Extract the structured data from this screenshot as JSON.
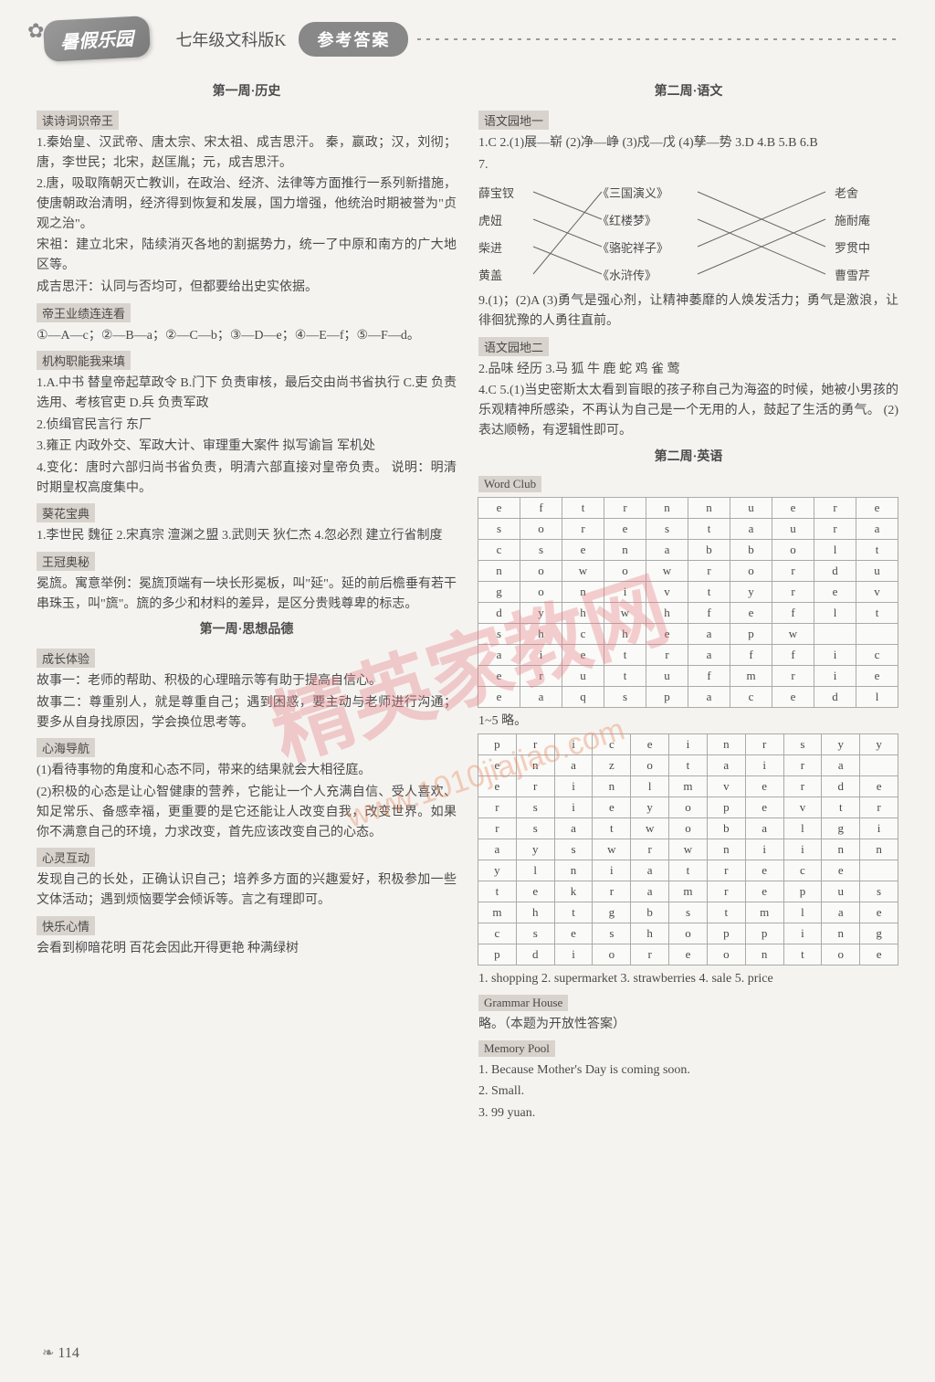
{
  "header": {
    "badge": "暑假乐园",
    "subtitle": "七年级文科版K",
    "answers": "参考答案"
  },
  "left": {
    "title1": "第一周·历史",
    "tag1": "读诗词识帝王",
    "p1a": "1.秦始皇、汉武帝、唐太宗、宋太祖、成吉思汗。  秦，嬴政；汉，刘彻；唐，李世民；北宋，赵匡胤；元，成吉思汗。",
    "p1b": "2.唐，吸取隋朝灭亡教训，在政治、经济、法律等方面推行一系列新措施，使唐朝政治清明，经济得到恢复和发展，国力增强，他统治时期被誉为\"贞观之治\"。",
    "p1c": "宋祖：建立北宋，陆续消灭各地的割据势力，统一了中原和南方的广大地区等。",
    "p1d": "成吉思汗：认同与否均可，但都要给出史实依据。",
    "tag2": "帝王业绩连连看",
    "p2": "①—A—c；②—B—a；②—C—b；③—D—e；④—E—f；⑤—F—d。",
    "tag3": "机构职能我来填",
    "p3a": "1.A.中书  替皇帝起草政令  B.门下  负责审核，最后交由尚书省执行  C.吏  负责选用、考核官吏  D.兵  负责军政",
    "p3b": "2.侦缉官民言行  东厂",
    "p3c": "3.雍正  内政外交、军政大计、审理重大案件  拟写谕旨  军机处",
    "p3d": "4.变化：唐时六部归尚书省负责，明清六部直接对皇帝负责。  说明：明清时期皇权高度集中。",
    "tag4": "葵花宝典",
    "p4a": "1.李世民  魏征  2.宋真宗  澶渊之盟  3.武则天  狄仁杰  4.忽必烈  建立行省制度",
    "tag5": "王冠奥秘",
    "p5a": "冕旒。寓意举例：冕旒顶端有一块长形冕板，叫\"延\"。延的前后檐垂有若干串珠玉，叫\"旒\"。旒的多少和材料的差异，是区分贵贱尊卑的标志。",
    "title2": "第一周·思想品德",
    "tag6": "成长体验",
    "p6a": "故事一：老师的帮助、积极的心理暗示等有助于提高自信心。",
    "p6b": "故事二：尊重别人，就是尊重自己；遇到困惑，要主动与老师进行沟通；要多从自身找原因，学会换位思考等。",
    "tag7": "心海导航",
    "p7a": "(1)看待事物的角度和心态不同，带来的结果就会大相径庭。",
    "p7b": "(2)积极的心态是让心智健康的营养，它能让一个人充满自信、受人喜欢、知足常乐、备感幸福，更重要的是它还能让人改变自我，改变世界。如果你不满意自己的环境，力求改变，首先应该改变自己的心态。",
    "tag8": "心灵互动",
    "p8": "发现自己的长处，正确认识自己；培养多方面的兴趣爱好，积极参加一些文体活动；遇到烦恼要学会倾诉等。言之有理即可。",
    "tag9": "快乐心情",
    "p9": "会看到柳暗花明  百花会因此开得更艳  种满绿树"
  },
  "right": {
    "title1": "第二周·语文",
    "tag1": "语文园地一",
    "p1a": "1.C  2.(1)展—崭  (2)净—峥  (3)戍—戊  (4)孳—势  3.D  4.B  5.B  6.B",
    "p1b": "7.",
    "match": {
      "left": [
        "薛宝钗",
        "虎妞",
        "柴进",
        "黄盖"
      ],
      "mid": [
        "《三国演义》",
        "《红楼梦》",
        "《骆驼祥子》",
        "《水浒传》"
      ],
      "rightc": [
        "老舍",
        "施耐庵",
        "罗贯中",
        "曹雪芹"
      ]
    },
    "p1c": "9.(1)；(2)A  (3)勇气是强心剂，让精神萎靡的人焕发活力；勇气是激浪，让徘徊犹豫的人勇往直前。",
    "tag2": "语文园地二",
    "p2a": "2.品味  经历  3.马 狐 牛 鹿 蛇 鸡 雀 莺",
    "p2b": "4.C  5.(1)当史密斯太太看到盲眼的孩子称自己为海盗的时候，她被小男孩的乐观精神所感染，不再认为自己是一个无用的人，鼓起了生活的勇气。  (2)表达顺畅，有逻辑性即可。",
    "title2": "第二周·英语",
    "tag3": "Word Club",
    "grid1": {
      "cols": 10,
      "rows": [
        [
          "e",
          "f",
          "t",
          "r",
          "n",
          "n",
          "u",
          "e",
          "r",
          "e"
        ],
        [
          "s",
          "o",
          "r",
          "e",
          "s",
          "t",
          "a",
          "u",
          "r",
          "a"
        ],
        [
          "c",
          "s",
          "e",
          "n",
          "a",
          "b",
          "b",
          "o",
          "l",
          "t"
        ],
        [
          "n",
          "o",
          "w",
          "o",
          "w",
          "r",
          "o",
          "r",
          "d",
          "u"
        ],
        [
          "g",
          "o",
          "n",
          "i",
          "v",
          "t",
          "y",
          "r",
          "e",
          "v"
        ],
        [
          "d",
          "y",
          "h",
          "w",
          "h",
          "f",
          "e",
          "f",
          "l",
          "t"
        ],
        [
          "s",
          "h",
          "c",
          "h",
          "e",
          "a",
          "p",
          "w",
          "",
          ""
        ],
        [
          "a",
          "i",
          "e",
          "t",
          "r",
          "a",
          "f",
          "f",
          "i",
          "c"
        ],
        [
          "e",
          "r",
          "u",
          "t",
          "u",
          "f",
          "m",
          "r",
          "i",
          "e"
        ],
        [
          "e",
          "a",
          "q",
          "s",
          "p",
          "a",
          "c",
          "e",
          "d",
          "l"
        ]
      ]
    },
    "p3": "1~5 略。",
    "grid2": {
      "cols": 11,
      "rows": [
        [
          "p",
          "r",
          "i",
          "c",
          "e",
          "i",
          "n",
          "r",
          "s",
          "y",
          "y"
        ],
        [
          "e",
          "n",
          "a",
          "z",
          "o",
          "t",
          "a",
          "i",
          "r",
          "a",
          ""
        ],
        [
          "e",
          "r",
          "i",
          "n",
          "l",
          "m",
          "v",
          "e",
          "r",
          "d",
          "e"
        ],
        [
          "r",
          "s",
          "i",
          "e",
          "y",
          "o",
          "p",
          "e",
          "v",
          "t",
          "r"
        ],
        [
          "r",
          "s",
          "a",
          "t",
          "w",
          "o",
          "b",
          "a",
          "l",
          "g",
          "i"
        ],
        [
          "a",
          "y",
          "s",
          "w",
          "r",
          "w",
          "n",
          "i",
          "i",
          "n",
          "n"
        ],
        [
          "y",
          "l",
          "n",
          "i",
          "a",
          "t",
          "r",
          "e",
          "c",
          "e",
          ""
        ],
        [
          "t",
          "e",
          "k",
          "r",
          "a",
          "m",
          "r",
          "e",
          "p",
          "u",
          "s"
        ],
        [
          "m",
          "h",
          "t",
          "g",
          "b",
          "s",
          "t",
          "m",
          "l",
          "a",
          "e"
        ],
        [
          "c",
          "s",
          "e",
          "s",
          "h",
          "o",
          "p",
          "p",
          "i",
          "n",
          "g"
        ],
        [
          "p",
          "d",
          "i",
          "o",
          "r",
          "e",
          "o",
          "n",
          "t",
          "o",
          "e"
        ]
      ]
    },
    "p4": "1. shopping  2. supermarket  3. strawberries  4. sale  5. price",
    "tag4": "Grammar House",
    "p5": "略。（本题为开放性答案）",
    "tag5": "Memory Pool",
    "p6a": "1. Because Mother's Day is coming soon.",
    "p6b": "2. Small.",
    "p6c": "3. 99 yuan."
  },
  "page": "114"
}
